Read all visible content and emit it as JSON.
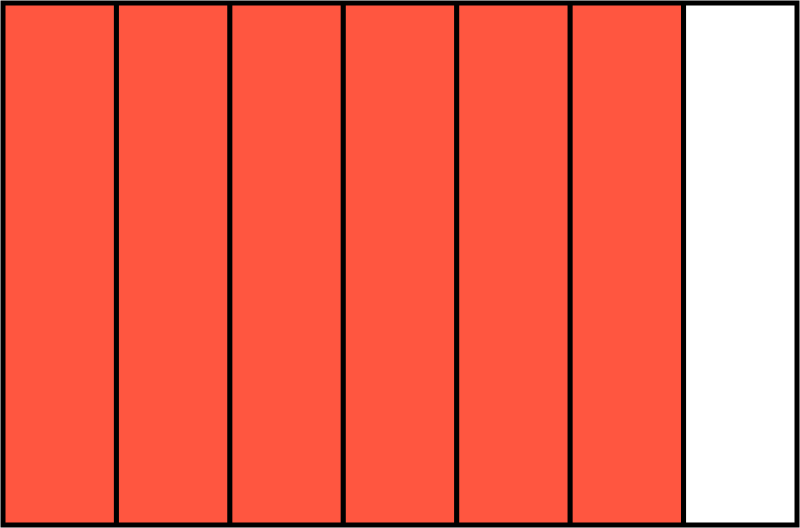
{
  "fraction_bar": {
    "cells": [
      true,
      true,
      true,
      true,
      true,
      true,
      false
    ],
    "fill_color": "#ff5640",
    "empty_color": "#ffffff",
    "border_color": "#000000"
  }
}
